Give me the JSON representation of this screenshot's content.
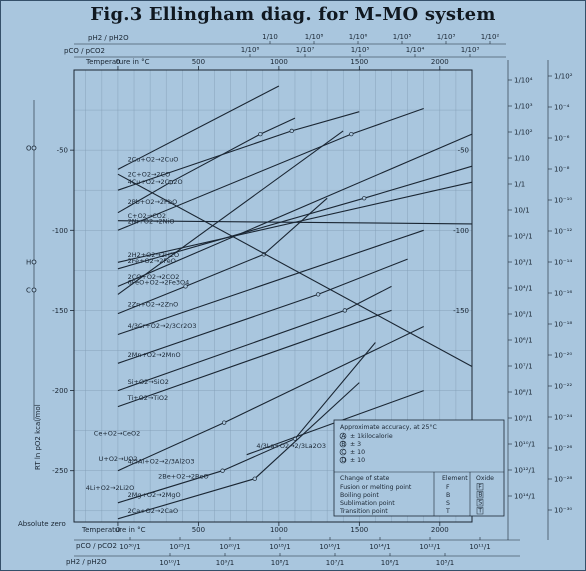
{
  "title": "Fig.3 Ellingham diag. for M-MO system",
  "chart_data": {
    "type": "line",
    "xlim": [
      -273,
      2200
    ],
    "ylim": [
      -282,
      0
    ],
    "x_ticks": [
      0,
      500,
      1000,
      1500,
      2000
    ],
    "x_tick_labels": [
      "0",
      "500",
      "1000",
      "1500",
      "2000"
    ],
    "y_ticks": [
      -50,
      -100,
      -150,
      -200,
      -250
    ],
    "y_tick_labels": [
      "-50",
      "-100",
      "-150",
      "-200",
      "-250"
    ],
    "right_tick_labels": [
      "-50",
      "-100",
      "-150"
    ],
    "xlabel_top": "Temperature in °C",
    "xlabel_bottom": "Temperature in °C",
    "ylabel": "RT ln pO2 kcal/mol",
    "absolute_zero_label": "Absolute zero",
    "left_point_labels": [
      "O",
      "H",
      "C"
    ],
    "top_scale_labels": {
      "h2": "pH2 / pH2O",
      "co": "pCO / pCO2"
    },
    "top_h2_ticks": [
      "1/10",
      "1/10⁸",
      "1/10⁶",
      "1/10⁵",
      "1/10³",
      "1/10²"
    ],
    "top_co_ticks": [
      "1/10⁸",
      "1/10⁷",
      "1/10⁵",
      "1/10⁴",
      "1/10³"
    ],
    "bottom_scale_labels": {
      "co": "pCO / pCO2",
      "h2": "pH2 / pH2O"
    },
    "bottom_co_ticks": [
      "10³⁰/1",
      "10²⁵/1",
      "10²⁰/1",
      "10¹⁸/1",
      "10¹⁶/1",
      "10¹⁴/1",
      "10¹²/1",
      "10¹¹/1"
    ],
    "bottom_h2_ticks": [
      "10¹⁰/1",
      "10⁹/1",
      "10⁸/1",
      "10⁷/1",
      "10⁶/1",
      "10⁵/1"
    ],
    "right_h2_ticks": [
      "1/10⁴",
      "1/10³",
      "1/10²",
      "1/10",
      "1/1",
      "10/1",
      "10²/1",
      "10³/1",
      "10⁴/1",
      "10⁵/1",
      "10⁶/1",
      "10⁷/1",
      "10⁸/1",
      "10⁹/1",
      "10¹⁰/1",
      "10¹²/1",
      "10¹⁴/1"
    ],
    "right_po2_ticks": [
      "1/10²",
      "10⁻⁴",
      "10⁻⁶",
      "10⁻⁸",
      "10⁻¹⁰",
      "10⁻¹²",
      "10⁻¹⁴",
      "10⁻¹⁶",
      "10⁻¹⁸",
      "10⁻²⁰",
      "10⁻²²",
      "10⁻²⁴",
      "10⁻²⁶",
      "10⁻²⁸",
      "10⁻³⁰"
    ],
    "series": [
      {
        "name": "4Cu+O2→2Cu2O",
        "x": [
          0,
          1080,
          1500
        ],
        "y": [
          -75,
          -38,
          -26
        ]
      },
      {
        "name": "2Cu+O2→2CuO",
        "x": [
          0,
          1000
        ],
        "y": [
          -62,
          -10
        ]
      },
      {
        "name": "6FeO+O2→2Fe3O4",
        "x": [
          0,
          1400
        ],
        "y": [
          -140,
          -38
        ]
      },
      {
        "name": "2Pb+O2→2PbO",
        "x": [
          0,
          327,
          885,
          1100
        ],
        "y": [
          -89,
          -70,
          -40,
          -30
        ]
      },
      {
        "name": "2Ni+O2→2NiO",
        "x": [
          0,
          1450,
          1900
        ],
        "y": [
          -100,
          -40,
          -24
        ]
      },
      {
        "name": "2CO+O2→2CO2",
        "x": [
          0,
          2200
        ],
        "y": [
          -135,
          -40
        ]
      },
      {
        "name": "2H2+O2→2H2O",
        "x": [
          0,
          2200
        ],
        "y": [
          -120,
          -70
        ]
      },
      {
        "name": "2Fe+O2→2FeO",
        "x": [
          0,
          1530,
          2200
        ],
        "y": [
          -124,
          -80,
          -60
        ]
      },
      {
        "name": "C+O2→CO2",
        "x": [
          0,
          2200
        ],
        "y": [
          -94,
          -96
        ]
      },
      {
        "name": "2Zn+O2→2ZnO",
        "x": [
          0,
          420,
          907,
          1300
        ],
        "y": [
          -152,
          -135,
          -115,
          -80
        ]
      },
      {
        "name": "2C+O2→2CO",
        "x": [
          0,
          2200
        ],
        "y": [
          -65,
          -185
        ]
      },
      {
        "name": "4/3Cr+O2→2/3Cr2O3",
        "x": [
          0,
          1900
        ],
        "y": [
          -165,
          -100
        ]
      },
      {
        "name": "2Mn+O2→2MnO",
        "x": [
          0,
          1244,
          1800
        ],
        "y": [
          -183,
          -140,
          -118
        ]
      },
      {
        "name": "Si+O2→SiO2",
        "x": [
          0,
          1410,
          1700
        ],
        "y": [
          -200,
          -150,
          -135
        ]
      },
      {
        "name": "Ti+O2→TiO2",
        "x": [
          0,
          1700
        ],
        "y": [
          -210,
          -150
        ]
      },
      {
        "name": "4/3Al+O2→2/3Al2O3",
        "x": [
          0,
          660,
          1900
        ],
        "y": [
          -250,
          -220,
          -160
        ]
      },
      {
        "name": "2Mg+O2→2MgO",
        "x": [
          0,
          650,
          1100,
          1600
        ],
        "y": [
          -270,
          -250,
          -230,
          -170
        ]
      },
      {
        "name": "2Ca+O2→2CaO",
        "x": [
          0,
          850,
          1500
        ],
        "y": [
          -280,
          -255,
          -195
        ]
      },
      {
        "name": "4/3La+O2→2/3La2O3",
        "x": [
          800,
          1900
        ],
        "y": [
          -240,
          -200
        ]
      }
    ],
    "annotations": [
      "4Cu+O2→2Cu2O",
      "2Cu+O2→2CuO",
      "6FeO+O2→2Fe3O4",
      "2Pb+O2→2PbO",
      "2Ni+O2→2NiO",
      "2CO+O2→2CO2",
      "2H2+O2→2H2O",
      "2Fe+O2→2FeO",
      "C+O2→CO2",
      "2Zn+O2→2ZnO",
      "2C+O2→2CO",
      "4/3Cr+O2→2/3Cr2O3",
      "2Mn+O2→2MnO",
      "Si+O2→SiO2",
      "Ti+O2→TiO2",
      "4/3Al+O2→2/3Al2O3",
      "2Mg+O2→2MgO",
      "2Ca+O2→2CaO",
      "4/3La+O2→2/3La2O3",
      "2Be+O2→2BeO",
      "4Li+O2→2Li2O",
      "Ce+O2→CeO2",
      "U+O2→UO2"
    ],
    "legend": {
      "heading": "Approximate accuracy, at 25°C",
      "accuracy": [
        {
          "mark": "A",
          "text": "± 1kilocalorie"
        },
        {
          "mark": "B",
          "text": "± 3"
        },
        {
          "mark": "C",
          "text": "± 10"
        },
        {
          "mark": "D",
          "text": "± 10"
        }
      ],
      "table_headers": [
        "Change of state",
        "Element",
        "Oxide"
      ],
      "rows": [
        {
          "change": "Fusion or melting point",
          "element": "F",
          "oxide": "F"
        },
        {
          "change": "Boiling point",
          "element": "B",
          "oxide": "B"
        },
        {
          "change": "Sublimation point",
          "element": "S",
          "oxide": "S"
        },
        {
          "change": "Transition point",
          "element": "T",
          "oxide": "T"
        }
      ]
    }
  }
}
